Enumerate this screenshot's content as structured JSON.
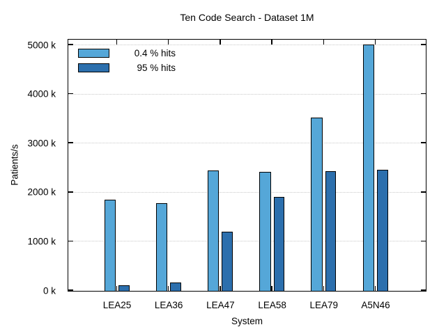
{
  "chart_data": {
    "type": "bar",
    "title": "Ten Code Search - Dataset 1M",
    "xlabel": "System",
    "ylabel": "Patients/s",
    "categories": [
      "LEA25",
      "LEA36",
      "LEA47",
      "LEA58",
      "LEA79",
      "A5N46"
    ],
    "series": [
      {
        "name": "0.4 % hits",
        "color": "#55a7d8",
        "values_k": [
          1840,
          1770,
          2430,
          2410,
          3520,
          5000
        ]
      },
      {
        "name": "95 % hits",
        "color": "#2c6fad",
        "values_k": [
          100,
          160,
          1190,
          1900,
          2420,
          2450
        ]
      }
    ],
    "units": "k Patients/s",
    "y_ticks_k": [
      0,
      1000,
      2000,
      3000,
      4000,
      5000
    ],
    "y_tick_labels": [
      "0 k",
      "1000 k",
      "2000 k",
      "3000 k",
      "4000 k",
      "5000 k"
    ],
    "ylim_k": [
      0,
      5100
    ],
    "grid": "horizontal dotted lines at major y ticks",
    "legend_position": "top-left-inside",
    "bar_border_color": "#000000",
    "grid_color": "#c8c8c8",
    "background_color": "#ffffff"
  }
}
